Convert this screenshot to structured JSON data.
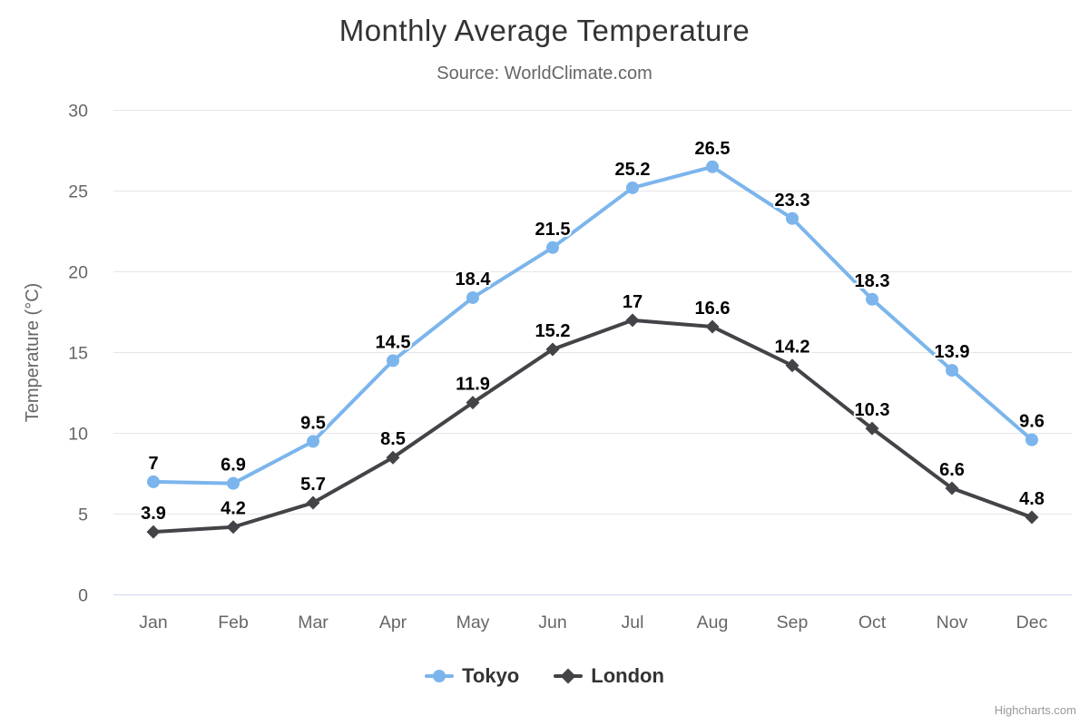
{
  "chart_data": {
    "type": "line",
    "title": "Monthly Average Temperature",
    "subtitle": "Source: WorldClimate.com",
    "categories": [
      "Jan",
      "Feb",
      "Mar",
      "Apr",
      "May",
      "Jun",
      "Jul",
      "Aug",
      "Sep",
      "Oct",
      "Nov",
      "Dec"
    ],
    "series": [
      {
        "name": "Tokyo",
        "color": "#7cb5ec",
        "marker": "circle",
        "values": [
          7,
          6.9,
          9.5,
          14.5,
          18.4,
          21.5,
          25.2,
          26.5,
          23.3,
          18.3,
          13.9,
          9.6
        ]
      },
      {
        "name": "London",
        "color": "#434348",
        "marker": "diamond",
        "values": [
          3.9,
          4.2,
          5.7,
          8.5,
          11.9,
          15.2,
          17,
          16.6,
          14.2,
          10.3,
          6.6,
          4.8
        ]
      }
    ],
    "xlabel": "",
    "ylabel": "Temperature (°C)",
    "ylim": [
      0,
      30
    ],
    "yticks": [
      0,
      5,
      10,
      15,
      20,
      25,
      30
    ],
    "grid": true,
    "data_labels": true,
    "legend_position": "bottom"
  },
  "credits": {
    "text": "Highcharts.com"
  },
  "colors": {
    "background": "#ffffff",
    "title": "#333333",
    "subtitle": "#666666",
    "axis_label": "#666666",
    "axis_title": "#666666",
    "grid_line": "#e6e6e6",
    "axis_line": "#ccd6eb",
    "data_label": "#000000",
    "legend_text": "#333333",
    "credit": "#999999"
  }
}
